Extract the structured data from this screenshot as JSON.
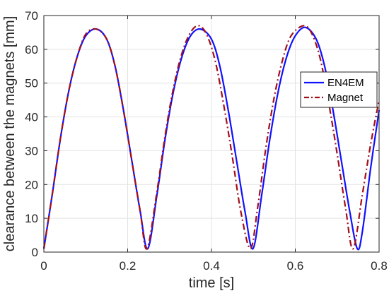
{
  "chart_data": {
    "type": "line",
    "xlabel": "time [s]",
    "ylabel": "clearance between the magnets [mm]",
    "xlim": [
      0,
      0.8
    ],
    "ylim": [
      0,
      70
    ],
    "xticks": [
      0,
      0.2,
      0.4,
      0.6,
      0.8
    ],
    "xtick_labels": [
      "0",
      "0.2",
      "0.4",
      "0.6",
      "0.8"
    ],
    "yticks": [
      0,
      10,
      20,
      30,
      40,
      50,
      60,
      70
    ],
    "ytick_labels": [
      "0",
      "10",
      "20",
      "30",
      "40",
      "50",
      "60",
      "70"
    ],
    "grid": true,
    "legend_position": "right",
    "series": [
      {
        "name": "EN4EM",
        "color": "#1010ff",
        "style": "solid",
        "x": [
          0,
          0.02,
          0.04,
          0.06,
          0.08,
          0.1,
          0.125,
          0.15,
          0.17,
          0.19,
          0.21,
          0.23,
          0.248,
          0.27,
          0.29,
          0.31,
          0.33,
          0.35,
          0.373,
          0.4,
          0.42,
          0.44,
          0.46,
          0.48,
          0.499,
          0.52,
          0.54,
          0.56,
          0.58,
          0.6,
          0.624,
          0.65,
          0.67,
          0.69,
          0.71,
          0.73,
          0.748,
          0.76,
          0.78,
          0.8
        ],
        "y": [
          1,
          17,
          34,
          48,
          58,
          64,
          66,
          63,
          55,
          42,
          27,
          12,
          1,
          17,
          34,
          48,
          58,
          64,
          66,
          63,
          55,
          42,
          27,
          12,
          1,
          17,
          34,
          48,
          58,
          64,
          66.5,
          63,
          55,
          42,
          27,
          12,
          1,
          6,
          25,
          42
        ]
      },
      {
        "name": "Magnet",
        "color": "#a0101a",
        "style": "dashdot",
        "x": [
          0,
          0.02,
          0.04,
          0.06,
          0.08,
          0.1,
          0.125,
          0.15,
          0.17,
          0.19,
          0.21,
          0.23,
          0.246,
          0.27,
          0.29,
          0.31,
          0.33,
          0.35,
          0.37,
          0.39,
          0.41,
          0.43,
          0.45,
          0.47,
          0.493,
          0.51,
          0.53,
          0.55,
          0.57,
          0.59,
          0.62,
          0.64,
          0.66,
          0.68,
          0.7,
          0.72,
          0.738,
          0.76,
          0.78,
          0.8
        ],
        "y": [
          1,
          17,
          34,
          48,
          58,
          64.5,
          66,
          63,
          55,
          42,
          27,
          12,
          1,
          18,
          35,
          49,
          59,
          65,
          67,
          64,
          56,
          43,
          28,
          12,
          1,
          13,
          31,
          46,
          57,
          64,
          67,
          64.5,
          57,
          44,
          29,
          13,
          1,
          17,
          32,
          45
        ]
      }
    ]
  }
}
